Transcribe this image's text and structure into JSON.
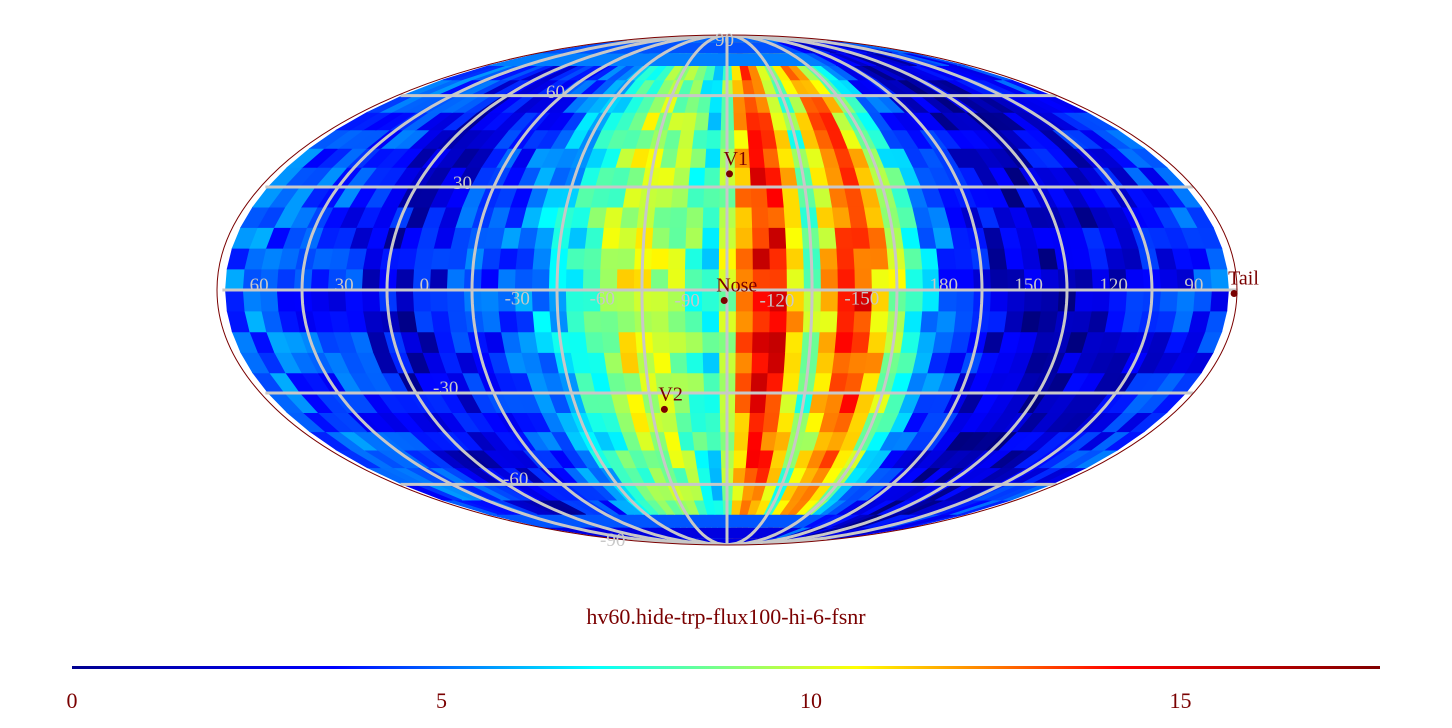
{
  "title": "hv60.hide-trp-flux100-hi-6-fsnr",
  "colorbar": {
    "min": 0,
    "max": 17.7,
    "ticks": [
      "0",
      "5",
      "10",
      "15"
    ],
    "colormap": [
      "#00008f",
      "#0000ff",
      "#00ffff",
      "#ffff00",
      "#ff0000",
      "#800000"
    ]
  },
  "grid": {
    "color": "#c8c8c8",
    "longitude_labels": [
      "60",
      "30",
      "0",
      "-30",
      "-60",
      "-90",
      "-120",
      "-150",
      "180",
      "150",
      "120",
      "90"
    ],
    "latitude_labels": [
      "90",
      "60",
      "30",
      "-30",
      "-60",
      "-90"
    ]
  },
  "markers": [
    {
      "name": "V1",
      "lon": -106,
      "lat": 34
    },
    {
      "name": "Nose",
      "lon": -104,
      "lat": -3
    },
    {
      "name": "V2",
      "lon": -80,
      "lat": -35
    },
    {
      "name": "Tail",
      "lon": 76,
      "lat": -1
    }
  ],
  "chart_data": {
    "type": "heatmap",
    "projection": "mollweide",
    "center_longitude": -105,
    "longitude_increases_to": "left",
    "value_range": [
      0,
      17.7
    ],
    "colormap": "jet",
    "bands_approx_by_longitude": [
      {
        "lon": -150,
        "value": 16
      },
      {
        "lon": -135,
        "value": 9
      },
      {
        "lon": -120,
        "value": 17
      },
      {
        "lon": -112,
        "value": 14
      },
      {
        "lon": -100,
        "value": 7
      },
      {
        "lon": -85,
        "value": 10
      },
      {
        "lon": -70,
        "value": 11
      },
      {
        "lon": -50,
        "value": 7
      },
      {
        "lon": -30,
        "value": 4
      },
      {
        "lon": -10,
        "value": 3
      },
      {
        "lon": 10,
        "value": 1.5
      },
      {
        "lon": 30,
        "value": 3
      },
      {
        "lon": 60,
        "value": 4
      },
      {
        "lon": 90,
        "value": 3
      },
      {
        "lon": 110,
        "value": 2
      },
      {
        "lon": 150,
        "value": 1
      },
      {
        "lon": 180,
        "value": 4
      }
    ]
  }
}
